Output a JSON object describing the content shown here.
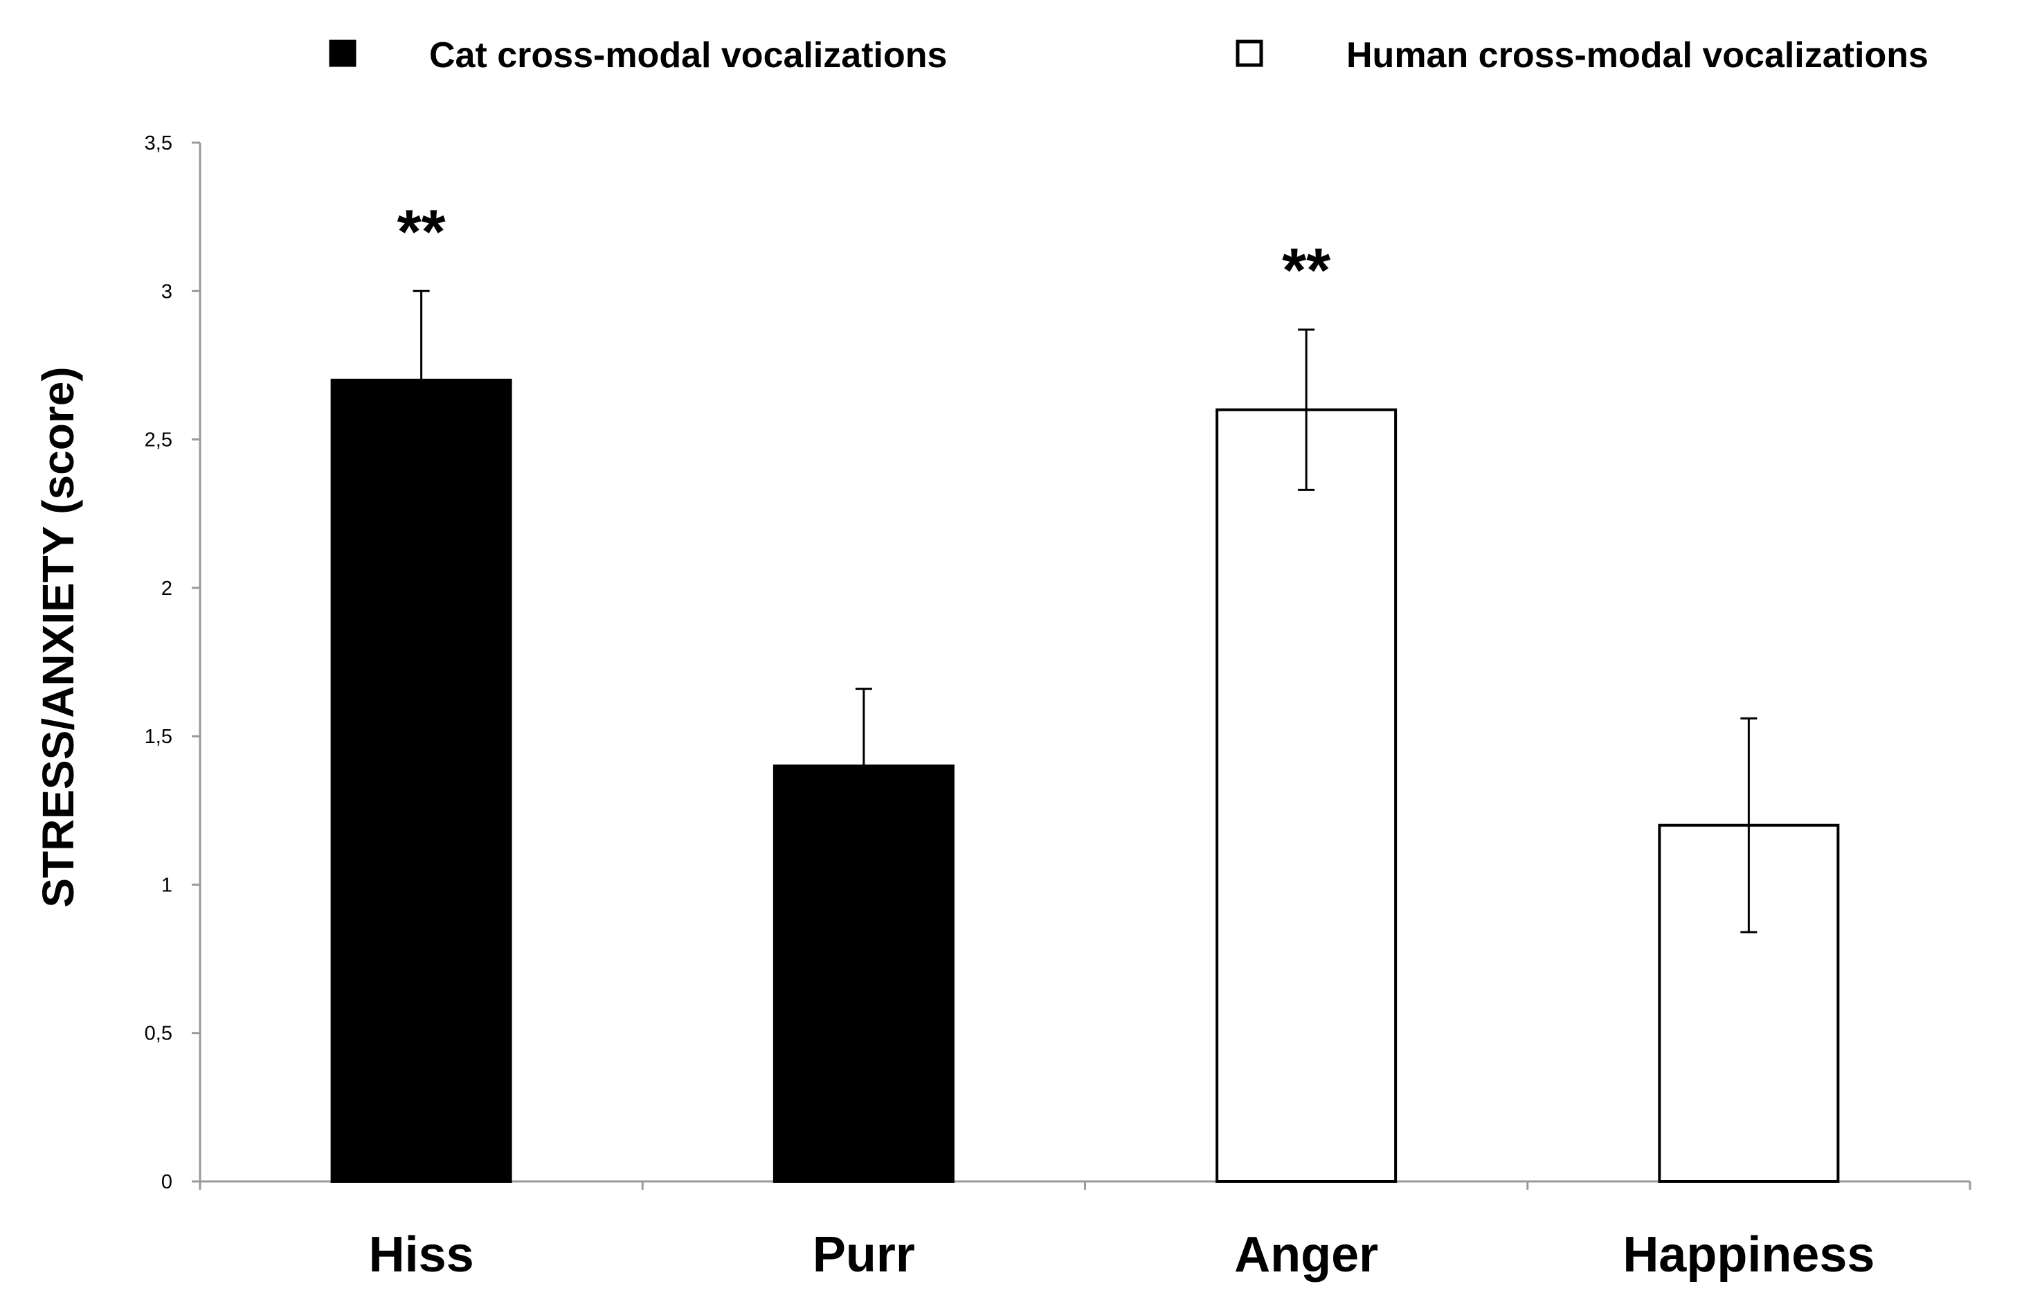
{
  "chart_data": {
    "type": "bar",
    "title": "",
    "xlabel": "",
    "ylabel": "STRESS/ANXIETY (score)",
    "ylim": [
      0,
      3.5
    ],
    "grid": false,
    "legend_position": "top",
    "categories": [
      "Hiss",
      "Purr",
      "Anger",
      "Happiness"
    ],
    "y_ticks": [
      "0",
      "0,5",
      "1",
      "1,5",
      "2",
      "2,5",
      "3",
      "3,5"
    ],
    "y_tick_values": [
      0,
      0.5,
      1,
      1.5,
      2,
      2.5,
      3,
      3.5
    ],
    "series": [
      {
        "name": "Cat cross-modal vocalizations",
        "color": "#000000",
        "fill": "#000000",
        "values": [
          2.7,
          1.4,
          null,
          null
        ],
        "error": [
          0.3,
          0.26,
          null,
          null
        ],
        "error_direction": [
          "up",
          "up",
          null,
          null
        ]
      },
      {
        "name": "Human cross-modal vocalizations",
        "color": "#000000",
        "fill": "#ffffff",
        "values": [
          null,
          null,
          2.6,
          1.2
        ],
        "error": [
          null,
          null,
          0.27,
          0.36
        ],
        "error_direction": [
          null,
          null,
          "both",
          "both"
        ]
      }
    ],
    "annotations": [
      {
        "category": "Hiss",
        "text": "**"
      },
      {
        "category": "Anger",
        "text": "**"
      }
    ]
  }
}
